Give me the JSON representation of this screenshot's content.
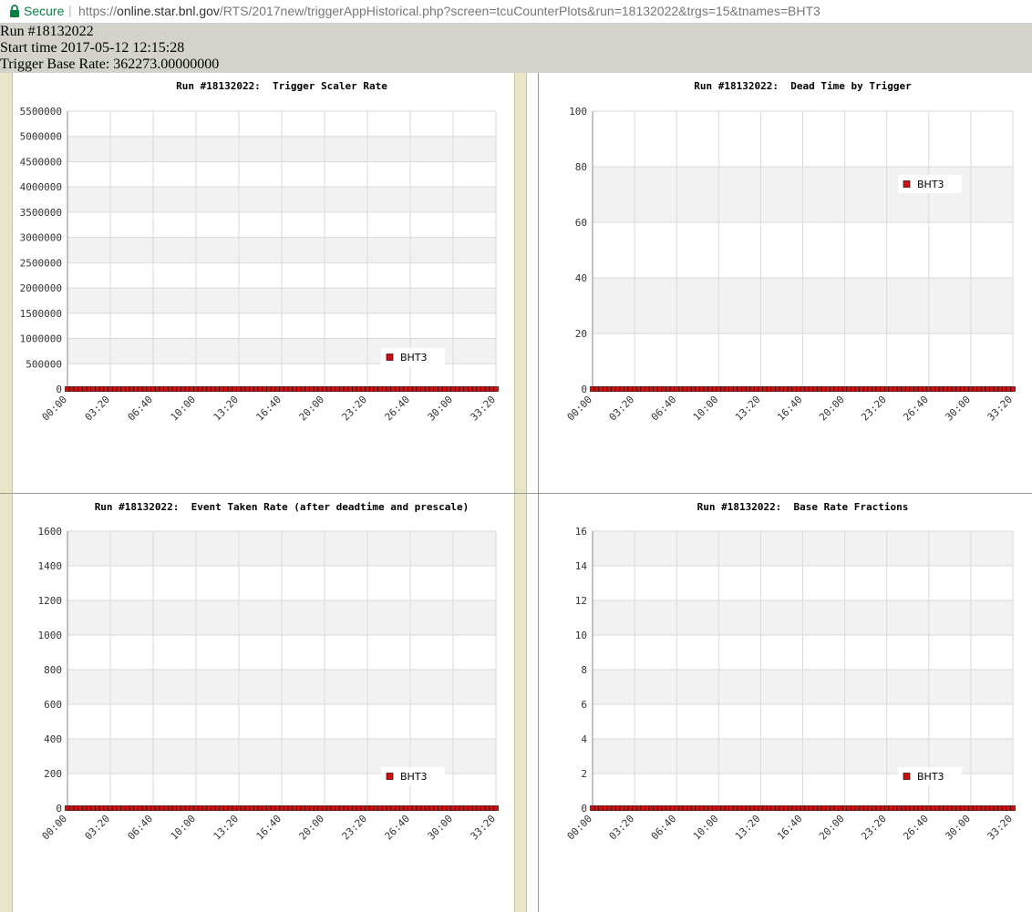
{
  "browser": {
    "secure_label": "Secure",
    "url_scheme": "https://",
    "url_host": "online.star.bnl.gov",
    "url_path": "/RTS/2017new/triggerAppHistorical.php?screen=tcuCounterPlots&run=18132022&trgs=15&tnames=BHT3"
  },
  "header": {
    "run_line": "Run #18132022",
    "start_line": "Start time 2017-05-12 12:15:28",
    "rate_line": "Trigger Base Rate: 362273.00000000"
  },
  "chart_data": [
    {
      "type": "line",
      "title": "Run #18132022:  Trigger Scaler Rate",
      "legend": "BHT3",
      "legend_position": "lower-right",
      "grid": true,
      "xlim": [
        0,
        2000
      ],
      "ylim": [
        0,
        5500000
      ],
      "yticks": [
        0,
        500000,
        1000000,
        1500000,
        2000000,
        2500000,
        3000000,
        3500000,
        4000000,
        4500000,
        5000000,
        5500000
      ],
      "ytick_labels": [
        "0",
        "500000",
        "1000000",
        "1500000",
        "2000000",
        "2500000",
        "3000000",
        "3500000",
        "4000000",
        "4500000",
        "5000000",
        "5500000"
      ],
      "xtick_labels": [
        "00:00",
        "03:20",
        "06:40",
        "10:00",
        "13:20",
        "16:40",
        "20:00",
        "23:20",
        "26:40",
        "30:00",
        "33:20"
      ],
      "series": [
        {
          "x": [
            0,
            20,
            40,
            60,
            80,
            100,
            120,
            140,
            160,
            180,
            200,
            220,
            240,
            260,
            280,
            300,
            320,
            340,
            360,
            380,
            400,
            420,
            440,
            460,
            480,
            500,
            520,
            540,
            560,
            580,
            600,
            620,
            640,
            660,
            680,
            700,
            720,
            740,
            760,
            780,
            800,
            820,
            840,
            860,
            880,
            900,
            920,
            940,
            960,
            980,
            1000,
            1020,
            1040,
            1060,
            1080,
            1100,
            1120,
            1140,
            1160,
            1180,
            1200,
            1220,
            1240,
            1260,
            1280,
            1300,
            1320,
            1340,
            1360,
            1380,
            1400,
            1420,
            1440,
            1460,
            1480,
            1500,
            1520,
            1540,
            1560,
            1580,
            1600,
            1620,
            1640,
            1660,
            1680,
            1700,
            1720,
            1740,
            1760,
            1780,
            1800,
            1820,
            1840,
            1860,
            1880,
            1900,
            1920,
            1940,
            1960,
            1980,
            2000
          ],
          "y": [
            0,
            0,
            0,
            0,
            0,
            0,
            0,
            0,
            0,
            0,
            0,
            0,
            0,
            0,
            0,
            0,
            0,
            0,
            0,
            0,
            0,
            0,
            0,
            0,
            0,
            0,
            0,
            0,
            0,
            0,
            0,
            0,
            0,
            0,
            0,
            0,
            0,
            0,
            0,
            0,
            0,
            0,
            0,
            0,
            0,
            0,
            0,
            0,
            0,
            0,
            0,
            0,
            0,
            0,
            0,
            0,
            0,
            0,
            0,
            0,
            0,
            0,
            0,
            0,
            0,
            0,
            0,
            0,
            0,
            0,
            0,
            0,
            0,
            0,
            0,
            0,
            0,
            0,
            0,
            0,
            0,
            0,
            0,
            0,
            0,
            0,
            0,
            0,
            0,
            0,
            0,
            0,
            0,
            0,
            0,
            0,
            0,
            0,
            0,
            0,
            0
          ]
        }
      ]
    },
    {
      "type": "line",
      "title": "Run #18132022:  Dead Time by Trigger",
      "legend": "BHT3",
      "legend_position": "upper-right",
      "grid": true,
      "xlim": [
        0,
        2000
      ],
      "ylim": [
        0,
        100
      ],
      "yticks": [
        0,
        20,
        40,
        60,
        80,
        100
      ],
      "ytick_labels": [
        "0",
        "20",
        "40",
        "60",
        "80",
        "100"
      ],
      "xtick_labels": [
        "00:00",
        "03:20",
        "06:40",
        "10:00",
        "13:20",
        "16:40",
        "20:00",
        "23:20",
        "26:40",
        "30:00",
        "33:20"
      ],
      "series": [
        {
          "x": [
            0,
            20,
            40,
            60,
            80,
            100,
            120,
            140,
            160,
            180,
            200,
            220,
            240,
            260,
            280,
            300,
            320,
            340,
            360,
            380,
            400,
            420,
            440,
            460,
            480,
            500,
            520,
            540,
            560,
            580,
            600,
            620,
            640,
            660,
            680,
            700,
            720,
            740,
            760,
            780,
            800,
            820,
            840,
            860,
            880,
            900,
            920,
            940,
            960,
            980,
            1000,
            1020,
            1040,
            1060,
            1080,
            1100,
            1120,
            1140,
            1160,
            1180,
            1200,
            1220,
            1240,
            1260,
            1280,
            1300,
            1320,
            1340,
            1360,
            1380,
            1400,
            1420,
            1440,
            1460,
            1480,
            1500,
            1520,
            1540,
            1560,
            1580,
            1600,
            1620,
            1640,
            1660,
            1680,
            1700,
            1720,
            1740,
            1760,
            1780,
            1800,
            1820,
            1840,
            1860,
            1880,
            1900,
            1920,
            1940,
            1960,
            1980,
            2000
          ],
          "y": [
            0,
            0,
            0,
            0,
            0,
            0,
            0,
            0,
            0,
            0,
            0,
            0,
            0,
            0,
            0,
            0,
            0,
            0,
            0,
            0,
            0,
            0,
            0,
            0,
            0,
            0,
            0,
            0,
            0,
            0,
            0,
            0,
            0,
            0,
            0,
            0,
            0,
            0,
            0,
            0,
            0,
            0,
            0,
            0,
            0,
            0,
            0,
            0,
            0,
            0,
            0,
            0,
            0,
            0,
            0,
            0,
            0,
            0,
            0,
            0,
            0,
            0,
            0,
            0,
            0,
            0,
            0,
            0,
            0,
            0,
            0,
            0,
            0,
            0,
            0,
            0,
            0,
            0,
            0,
            0,
            0,
            0,
            0,
            0,
            0,
            0,
            0,
            0,
            0,
            0,
            0,
            0,
            0,
            0,
            0,
            0,
            0,
            0,
            0,
            0,
            0
          ]
        }
      ]
    },
    {
      "type": "line",
      "title": "Run #18132022:  Event Taken Rate (after deadtime and prescale)",
      "legend": "BHT3",
      "legend_position": "lower-right",
      "grid": true,
      "xlim": [
        0,
        2000
      ],
      "ylim": [
        0,
        1600
      ],
      "yticks": [
        0,
        200,
        400,
        600,
        800,
        1000,
        1200,
        1400,
        1600
      ],
      "ytick_labels": [
        "0",
        "200",
        "400",
        "600",
        "800",
        "1000",
        "1200",
        "1400",
        "1600"
      ],
      "xtick_labels": [
        "00:00",
        "03:20",
        "06:40",
        "10:00",
        "13:20",
        "16:40",
        "20:00",
        "23:20",
        "26:40",
        "30:00",
        "33:20"
      ],
      "series": [
        {
          "x": [
            0,
            20,
            40,
            60,
            80,
            100,
            120,
            140,
            160,
            180,
            200,
            220,
            240,
            260,
            280,
            300,
            320,
            340,
            360,
            380,
            400,
            420,
            440,
            460,
            480,
            500,
            520,
            540,
            560,
            580,
            600,
            620,
            640,
            660,
            680,
            700,
            720,
            740,
            760,
            780,
            800,
            820,
            840,
            860,
            880,
            900,
            920,
            940,
            960,
            980,
            1000,
            1020,
            1040,
            1060,
            1080,
            1100,
            1120,
            1140,
            1160,
            1180,
            1200,
            1220,
            1240,
            1260,
            1280,
            1300,
            1320,
            1340,
            1360,
            1380,
            1400,
            1420,
            1440,
            1460,
            1480,
            1500,
            1520,
            1540,
            1560,
            1580,
            1600,
            1620,
            1640,
            1660,
            1680,
            1700,
            1720,
            1740,
            1760,
            1780,
            1800,
            1820,
            1840,
            1860,
            1880,
            1900,
            1920,
            1940,
            1960,
            1980,
            2000
          ],
          "y": [
            0,
            0,
            0,
            0,
            0,
            0,
            0,
            0,
            0,
            0,
            0,
            0,
            0,
            0,
            0,
            0,
            0,
            0,
            0,
            0,
            0,
            0,
            0,
            0,
            0,
            0,
            0,
            0,
            0,
            0,
            0,
            0,
            0,
            0,
            0,
            0,
            0,
            0,
            0,
            0,
            0,
            0,
            0,
            0,
            0,
            0,
            0,
            0,
            0,
            0,
            0,
            0,
            0,
            0,
            0,
            0,
            0,
            0,
            0,
            0,
            0,
            0,
            0,
            0,
            0,
            0,
            0,
            0,
            0,
            0,
            0,
            0,
            0,
            0,
            0,
            0,
            0,
            0,
            0,
            0,
            0,
            0,
            0,
            0,
            0,
            0,
            0,
            0,
            0,
            0,
            0,
            0,
            0,
            0,
            0,
            0,
            0,
            0,
            0,
            0,
            0
          ]
        }
      ]
    },
    {
      "type": "line",
      "title": "Run #18132022:  Base Rate Fractions",
      "legend": "BHT3",
      "legend_position": "lower-right",
      "grid": true,
      "xlim": [
        0,
        2000
      ],
      "ylim": [
        0,
        16
      ],
      "yticks": [
        0,
        2,
        4,
        6,
        8,
        10,
        12,
        14,
        16
      ],
      "ytick_labels": [
        "0",
        "2",
        "4",
        "6",
        "8",
        "10",
        "12",
        "14",
        "16"
      ],
      "xtick_labels": [
        "00:00",
        "03:20",
        "06:40",
        "10:00",
        "13:20",
        "16:40",
        "20:00",
        "23:20",
        "26:40",
        "30:00",
        "33:20"
      ],
      "series": [
        {
          "x": [
            0,
            20,
            40,
            60,
            80,
            100,
            120,
            140,
            160,
            180,
            200,
            220,
            240,
            260,
            280,
            300,
            320,
            340,
            360,
            380,
            400,
            420,
            440,
            460,
            480,
            500,
            520,
            540,
            560,
            580,
            600,
            620,
            640,
            660,
            680,
            700,
            720,
            740,
            760,
            780,
            800,
            820,
            840,
            860,
            880,
            900,
            920,
            940,
            960,
            980,
            1000,
            1020,
            1040,
            1060,
            1080,
            1100,
            1120,
            1140,
            1160,
            1180,
            1200,
            1220,
            1240,
            1260,
            1280,
            1300,
            1320,
            1340,
            1360,
            1380,
            1400,
            1420,
            1440,
            1460,
            1480,
            1500,
            1520,
            1540,
            1560,
            1580,
            1600,
            1620,
            1640,
            1660,
            1680,
            1700,
            1720,
            1740,
            1760,
            1780,
            1800,
            1820,
            1840,
            1860,
            1880,
            1900,
            1920,
            1940,
            1960,
            1980,
            2000
          ],
          "y": [
            0,
            0,
            0,
            0,
            0,
            0,
            0,
            0,
            0,
            0,
            0,
            0,
            0,
            0,
            0,
            0,
            0,
            0,
            0,
            0,
            0,
            0,
            0,
            0,
            0,
            0,
            0,
            0,
            0,
            0,
            0,
            0,
            0,
            0,
            0,
            0,
            0,
            0,
            0,
            0,
            0,
            0,
            0,
            0,
            0,
            0,
            0,
            0,
            0,
            0,
            0,
            0,
            0,
            0,
            0,
            0,
            0,
            0,
            0,
            0,
            0,
            0,
            0,
            0,
            0,
            0,
            0,
            0,
            0,
            0,
            0,
            0,
            0,
            0,
            0,
            0,
            0,
            0,
            0,
            0,
            0,
            0,
            0,
            0,
            0,
            0,
            0,
            0,
            0,
            0,
            0,
            0,
            0,
            0,
            0,
            0,
            0,
            0,
            0,
            0,
            0
          ]
        }
      ]
    }
  ]
}
